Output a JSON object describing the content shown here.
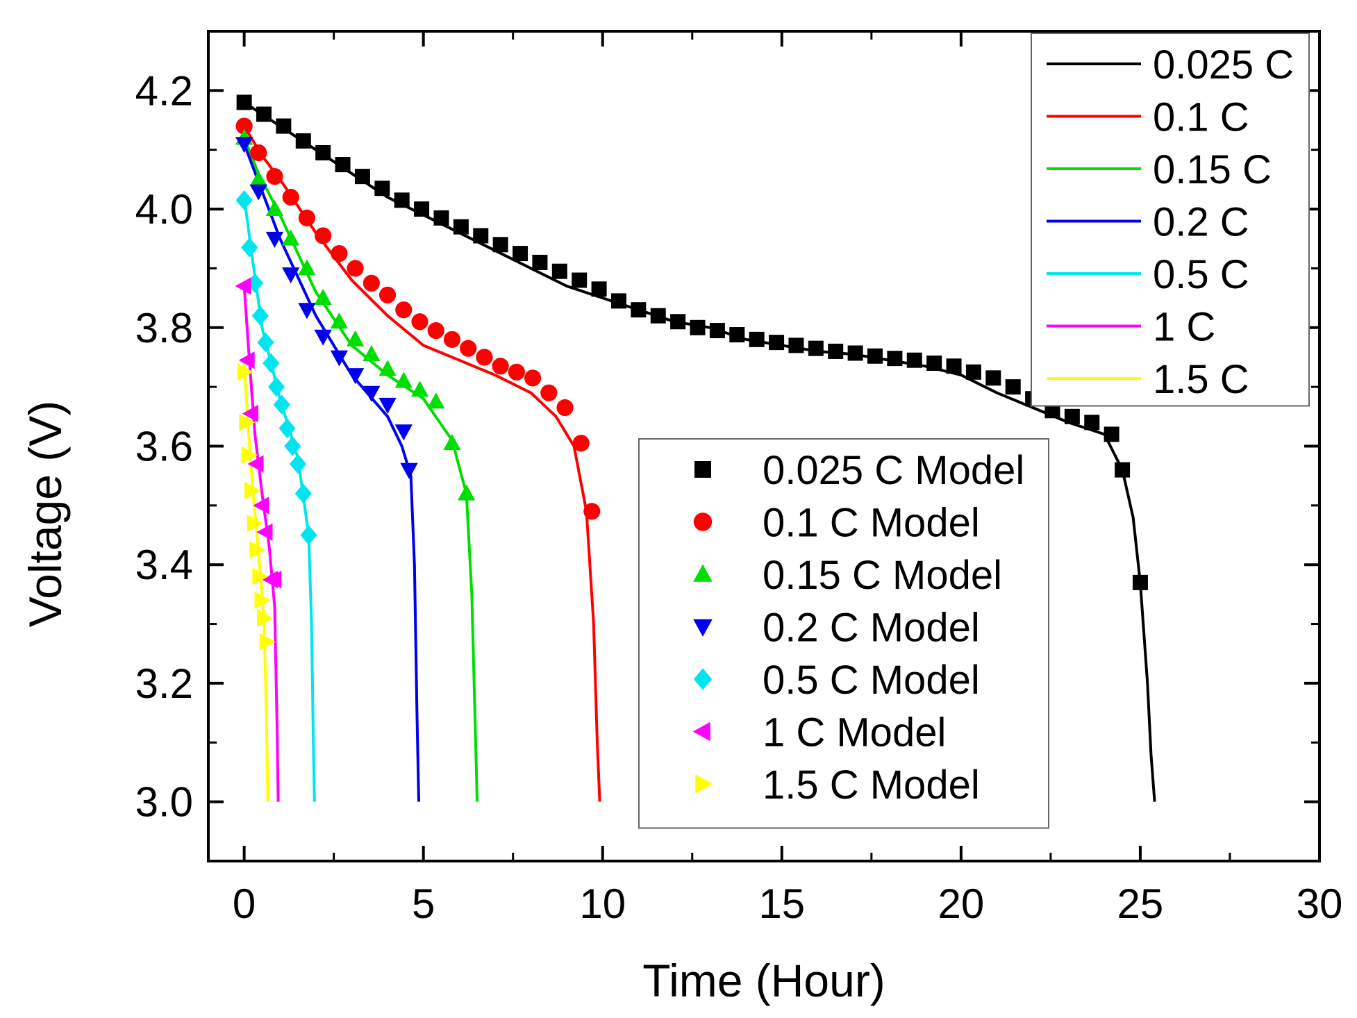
{
  "chart_data": {
    "type": "line",
    "title": "",
    "xlabel": "Time (Hour)",
    "ylabel": "Voltage (V)",
    "xlim": [
      -1,
      30
    ],
    "ylim": [
      2.9,
      4.3
    ],
    "xticks": [
      0,
      5,
      10,
      15,
      20,
      25,
      30
    ],
    "xtick_labels": [
      "0",
      "5",
      "10",
      "15",
      "20",
      "25",
      "30"
    ],
    "yticks": [
      3.0,
      3.2,
      3.4,
      3.6,
      3.8,
      4.0,
      4.2
    ],
    "ytick_labels": [
      "3.0",
      "3.2",
      "3.4",
      "3.6",
      "3.8",
      "4.0",
      "4.2"
    ],
    "grid": false,
    "legend_lines_position": "top-right",
    "legend_markers_position": "center-right",
    "series": [
      {
        "name": "0.025 C",
        "kind": "line",
        "color": "#000000",
        "x": [
          0,
          1,
          2,
          3,
          4,
          5,
          6,
          7,
          8,
          9,
          10,
          11,
          12,
          13,
          14,
          15,
          16,
          17,
          18,
          19,
          20,
          21,
          22,
          23,
          24,
          24.5,
          24.8,
          25.0,
          25.2,
          25.3,
          25.4
        ],
        "y": [
          4.18,
          4.14,
          4.1,
          4.06,
          4.02,
          3.99,
          3.96,
          3.93,
          3.9,
          3.87,
          3.85,
          3.83,
          3.81,
          3.8,
          3.78,
          3.77,
          3.76,
          3.755,
          3.745,
          3.735,
          3.72,
          3.69,
          3.665,
          3.64,
          3.62,
          3.56,
          3.48,
          3.37,
          3.2,
          3.08,
          3.0
        ]
      },
      {
        "name": "0.1 C",
        "kind": "line",
        "color": "#ff0000",
        "x": [
          0,
          0.5,
          1,
          2,
          3,
          4,
          5,
          6,
          7,
          8,
          8.7,
          9.2,
          9.55,
          9.75,
          9.85,
          9.92
        ],
        "y": [
          4.14,
          4.09,
          4.05,
          3.96,
          3.88,
          3.82,
          3.77,
          3.745,
          3.72,
          3.69,
          3.65,
          3.6,
          3.49,
          3.3,
          3.1,
          3.0
        ]
      },
      {
        "name": "0.15 C",
        "kind": "line",
        "color": "#00dd00",
        "x": [
          0,
          0.4,
          1,
          2,
          3,
          4,
          5,
          5.8,
          6.2,
          6.35,
          6.45,
          6.5
        ],
        "y": [
          4.12,
          4.06,
          3.99,
          3.86,
          3.77,
          3.72,
          3.68,
          3.61,
          3.52,
          3.35,
          3.12,
          3.0
        ]
      },
      {
        "name": "0.2 C",
        "kind": "line",
        "color": "#0000ee",
        "x": [
          0,
          0.5,
          1,
          2,
          3,
          4,
          4.4,
          4.65,
          4.75,
          4.82,
          4.87
        ],
        "y": [
          4.11,
          4.03,
          3.95,
          3.82,
          3.72,
          3.65,
          3.6,
          3.55,
          3.4,
          3.15,
          3.0
        ]
      },
      {
        "name": "0.5 C",
        "kind": "line",
        "color": "#00e5ee",
        "x": [
          0,
          0.2,
          0.5,
          1,
          1.5,
          1.8,
          1.88,
          1.93,
          1.96
        ],
        "y": [
          4.02,
          3.93,
          3.8,
          3.68,
          3.58,
          3.45,
          3.3,
          3.1,
          3.0
        ]
      },
      {
        "name": "1 C",
        "kind": "line",
        "color": "#ff00ff",
        "x": [
          0,
          0.15,
          0.3,
          0.5,
          0.7,
          0.85,
          0.92,
          0.95
        ],
        "y": [
          3.87,
          3.74,
          3.62,
          3.52,
          3.43,
          3.33,
          3.12,
          3.0
        ]
      },
      {
        "name": "1.5 C",
        "kind": "line",
        "color": "#ffff00",
        "x": [
          0,
          0.1,
          0.25,
          0.4,
          0.55,
          0.62,
          0.66
        ],
        "y": [
          3.74,
          3.64,
          3.52,
          3.42,
          3.31,
          3.15,
          3.0
        ]
      },
      {
        "name": "0.025 C Model",
        "kind": "marker",
        "marker": "square",
        "color": "#000000",
        "x": [
          0,
          0.55,
          1.1,
          1.65,
          2.2,
          2.75,
          3.3,
          3.85,
          4.4,
          4.95,
          5.5,
          6.05,
          6.6,
          7.15,
          7.7,
          8.25,
          8.8,
          9.35,
          9.9,
          10.45,
          11.0,
          11.55,
          12.1,
          12.65,
          13.2,
          13.75,
          14.3,
          14.85,
          15.4,
          15.95,
          16.5,
          17.05,
          17.6,
          18.15,
          18.7,
          19.25,
          19.8,
          20.35,
          20.9,
          21.45,
          22.0,
          22.55,
          23.1,
          23.65,
          24.2,
          24.5,
          25.0
        ],
        "y": [
          4.18,
          4.16,
          4.14,
          4.115,
          4.095,
          4.075,
          4.055,
          4.035,
          4.015,
          4.0,
          3.985,
          3.97,
          3.955,
          3.94,
          3.925,
          3.91,
          3.895,
          3.88,
          3.865,
          3.845,
          3.83,
          3.82,
          3.81,
          3.8,
          3.795,
          3.788,
          3.78,
          3.775,
          3.77,
          3.765,
          3.76,
          3.757,
          3.752,
          3.748,
          3.745,
          3.74,
          3.735,
          3.725,
          3.715,
          3.7,
          3.68,
          3.66,
          3.65,
          3.64,
          3.62,
          3.56,
          3.37
        ]
      },
      {
        "name": "0.1 C Model",
        "kind": "marker",
        "marker": "circle",
        "color": "#ff0000",
        "x": [
          0,
          0.4,
          0.85,
          1.3,
          1.75,
          2.2,
          2.65,
          3.1,
          3.55,
          4.0,
          4.45,
          4.9,
          5.35,
          5.8,
          6.25,
          6.7,
          7.15,
          7.6,
          8.05,
          8.5,
          8.95,
          9.4,
          9.7
        ],
        "y": [
          4.14,
          4.095,
          4.055,
          4.02,
          3.985,
          3.955,
          3.925,
          3.9,
          3.875,
          3.855,
          3.83,
          3.81,
          3.795,
          3.78,
          3.765,
          3.75,
          3.735,
          3.725,
          3.715,
          3.69,
          3.665,
          3.605,
          3.49
        ]
      },
      {
        "name": "0.15 C Model",
        "kind": "marker",
        "marker": "triangle-up",
        "color": "#00dd00",
        "x": [
          0,
          0.4,
          0.85,
          1.3,
          1.75,
          2.2,
          2.65,
          3.1,
          3.55,
          4.0,
          4.45,
          4.9,
          5.35,
          5.8,
          6.2
        ],
        "y": [
          4.12,
          4.05,
          4.0,
          3.95,
          3.9,
          3.85,
          3.81,
          3.78,
          3.755,
          3.73,
          3.71,
          3.695,
          3.675,
          3.605,
          3.52
        ]
      },
      {
        "name": "0.2 C Model",
        "kind": "marker",
        "marker": "triangle-down",
        "color": "#0000ee",
        "x": [
          0,
          0.4,
          0.85,
          1.3,
          1.75,
          2.2,
          2.65,
          3.1,
          3.55,
          4.0,
          4.45,
          4.6
        ],
        "y": [
          4.11,
          4.03,
          3.95,
          3.89,
          3.83,
          3.785,
          3.75,
          3.72,
          3.69,
          3.67,
          3.625,
          3.56
        ]
      },
      {
        "name": "0.5 C Model",
        "kind": "marker",
        "marker": "diamond",
        "color": "#00e5ee",
        "x": [
          0,
          0.15,
          0.3,
          0.45,
          0.6,
          0.75,
          0.9,
          1.05,
          1.2,
          1.35,
          1.5,
          1.65,
          1.8
        ],
        "y": [
          4.015,
          3.935,
          3.875,
          3.82,
          3.775,
          3.74,
          3.7,
          3.67,
          3.63,
          3.6,
          3.57,
          3.52,
          3.45
        ]
      },
      {
        "name": "1 C Model",
        "kind": "marker",
        "marker": "triangle-left",
        "color": "#ff00ff",
        "x": [
          0,
          0.1,
          0.2,
          0.35,
          0.5,
          0.6,
          0.75,
          0.85
        ],
        "y": [
          3.87,
          3.745,
          3.655,
          3.57,
          3.5,
          3.455,
          3.375,
          3.375
        ]
      },
      {
        "name": "1.5 C Model",
        "kind": "marker",
        "marker": "triangle-right",
        "color": "#ffff00",
        "x": [
          0,
          0.05,
          0.12,
          0.2,
          0.27,
          0.34,
          0.42,
          0.48,
          0.55,
          0.62
        ],
        "y": [
          3.725,
          3.64,
          3.585,
          3.525,
          3.47,
          3.425,
          3.38,
          3.34,
          3.31,
          3.27
        ]
      }
    ]
  }
}
